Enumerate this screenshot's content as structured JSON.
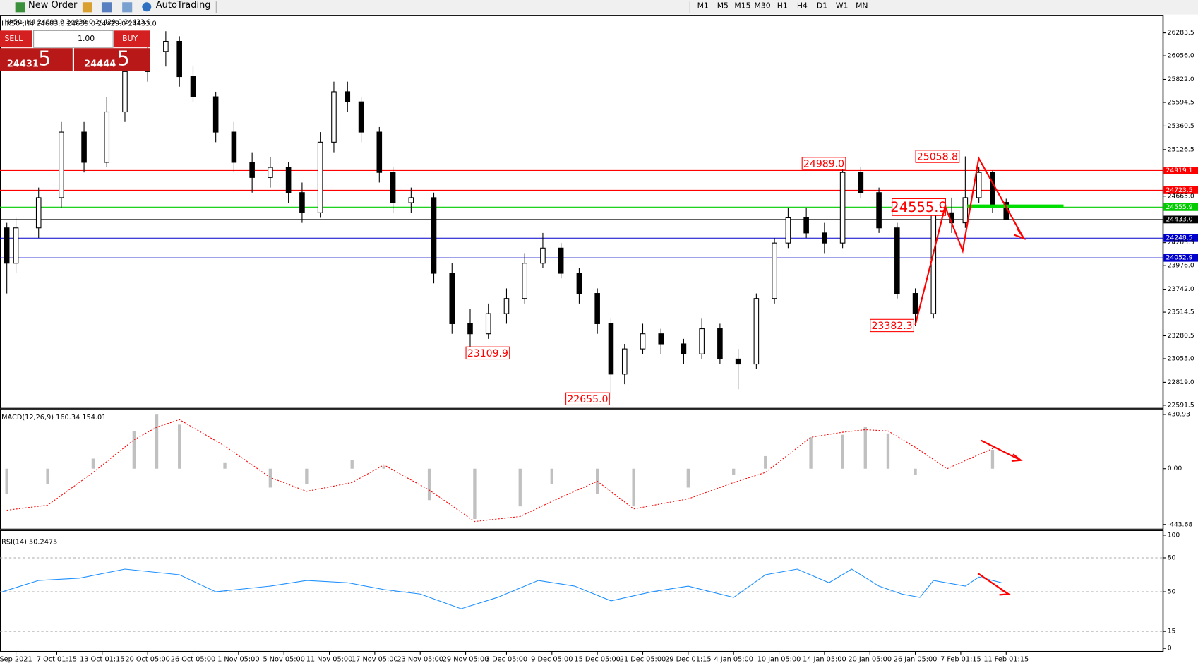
{
  "toolbar": {
    "new_order": "New Order",
    "auto_trading": "AutoTrading",
    "periods": [
      "M1",
      "M5",
      "M15",
      "M30",
      "H1",
      "H4",
      "D1",
      "W1",
      "MN"
    ]
  },
  "trade_panel": {
    "sell": "SELL",
    "lots": "1.00",
    "buy": "BUY",
    "bid_big": "24431",
    "bid_small": ".5",
    "ask_big": "24444",
    "ask_small": ".5"
  },
  "chart_data": [
    {
      "type": "candlestick",
      "title": "HK50-,H4  24603.0 24639.0 24429.0 24433.0",
      "up_color": "#ffffff",
      "down_color": "#000000",
      "xlim": [
        0,
        256
      ],
      "ylim": [
        22569,
        26443
      ],
      "yticks": [
        26283.5,
        {
          "value": 26056.0,
          "label": "26056.0"
        },
        {
          "value": 25822.0,
          "label": "25822.0"
        },
        25594.5,
        25360.5,
        25126.5,
        {
          "value": 24665.0,
          "label": "24665.0"
        },
        24203.5,
        {
          "value": 23976.0,
          "label": "23976.0"
        },
        {
          "value": 23742.0,
          "label": "23742.0"
        },
        23514.5,
        23280.5,
        {
          "value": 23053.0,
          "label": "23053.0"
        },
        {
          "value": 22819.0,
          "label": "22819.0"
        },
        22591.5
      ],
      "xticks": [
        {
          "value": 3,
          "label": "Sep 2021"
        },
        {
          "value": 12,
          "label": "7 Oct 01:15"
        },
        {
          "value": 22,
          "label": "13 Oct 01:15"
        },
        {
          "value": 32,
          "label": "20 Oct 05:00"
        },
        {
          "value": 42,
          "label": "26 Oct 05:00"
        },
        {
          "value": 52,
          "label": "1 Nov 05:00"
        },
        {
          "value": 62,
          "label": "5 Nov 05:00"
        },
        {
          "value": 72,
          "label": "11 Nov 05:00"
        },
        {
          "value": 82,
          "label": "17 Nov 05:00"
        },
        {
          "value": 92,
          "label": "23 Nov 05:00"
        },
        {
          "value": 102,
          "label": "29 Nov 05:00"
        },
        {
          "value": 111,
          "label": "3 Dec 05:00"
        },
        {
          "value": 121,
          "label": "9 Dec 05:00"
        },
        {
          "value": 131,
          "label": "15 Dec 05:00"
        },
        {
          "value": 141,
          "label": "21 Dec 05:00"
        },
        {
          "value": 151,
          "label": "29 Dec 01:15"
        },
        {
          "value": 161,
          "label": "4 Jan 05:00"
        },
        {
          "value": 171,
          "label": "10 Jan 05:00"
        },
        {
          "value": 181,
          "label": "14 Jan 05:00"
        },
        {
          "value": 191,
          "label": "20 Jan 05:00"
        },
        {
          "value": 201,
          "label": "26 Jan 05:00"
        },
        {
          "value": 211,
          "label": "7 Feb 01:15"
        },
        {
          "value": 221,
          "label": "11 Feb 01:15"
        }
      ],
      "levels": [
        {
          "value": 24919.1,
          "color": "#ff0000"
        },
        {
          "value": 24723.5,
          "color": "#ff0000"
        },
        {
          "value": 24555.9,
          "color": "#00cc00"
        },
        {
          "value": 24433.0,
          "label": "24433.0",
          "color": "#000000"
        },
        {
          "value": 24248.5,
          "color": "#0000cc"
        },
        {
          "value": 24052.9,
          "color": "#0000cc"
        }
      ],
      "annotations": [
        {
          "text": "24989.0",
          "value": 24989.0,
          "x": 186
        },
        {
          "text": "25058.8",
          "value": 25058.8,
          "x": 211
        },
        {
          "text": "24555.9",
          "value": 24555.9,
          "x": 208
        },
        {
          "text": "23382.3",
          "value": 23382.3,
          "x": 201
        },
        {
          "text": "23109.9",
          "value": 23109.9,
          "x": 112
        },
        {
          "text": "22655.0",
          "value": 22655.0,
          "x": 134
        }
      ],
      "candles": [
        {
          "x": 1,
          "open": 24350,
          "high": 24400,
          "low": 23700,
          "close": 24000
        },
        {
          "x": 3,
          "open": 24000,
          "high": 24450,
          "low": 23900,
          "close": 24350
        },
        {
          "x": 8,
          "open": 24350,
          "high": 24750,
          "low": 24250,
          "close": 24650
        },
        {
          "x": 13,
          "open": 24650,
          "high": 25400,
          "low": 24550,
          "close": 25300
        },
        {
          "x": 18,
          "open": 25300,
          "high": 25400,
          "low": 24900,
          "close": 25000
        },
        {
          "x": 23,
          "open": 25000,
          "high": 25650,
          "low": 24950,
          "close": 25500
        },
        {
          "x": 27,
          "open": 25500,
          "high": 25950,
          "low": 25400,
          "close": 25900
        },
        {
          "x": 32,
          "open": 25900,
          "high": 26200,
          "low": 25800,
          "close": 26100
        },
        {
          "x": 36,
          "open": 26100,
          "high": 26300,
          "low": 25950,
          "close": 26200
        },
        {
          "x": 39,
          "open": 26200,
          "high": 26250,
          "low": 25750,
          "close": 25850
        },
        {
          "x": 42,
          "open": 25850,
          "high": 25950,
          "low": 25600,
          "close": 25650
        },
        {
          "x": 47,
          "open": 25650,
          "high": 25700,
          "low": 25200,
          "close": 25300
        },
        {
          "x": 51,
          "open": 25300,
          "high": 25400,
          "low": 24900,
          "close": 25000
        },
        {
          "x": 55,
          "open": 25000,
          "high": 25100,
          "low": 24700,
          "close": 24850
        },
        {
          "x": 59,
          "open": 24850,
          "high": 25050,
          "low": 24750,
          "close": 24950
        },
        {
          "x": 63,
          "open": 24950,
          "high": 25000,
          "low": 24600,
          "close": 24700
        },
        {
          "x": 66,
          "open": 24700,
          "high": 24800,
          "low": 24400,
          "close": 24500
        },
        {
          "x": 70,
          "open": 24500,
          "high": 25300,
          "low": 24450,
          "close": 25200
        },
        {
          "x": 73,
          "open": 25200,
          "high": 25800,
          "low": 25100,
          "close": 25700
        },
        {
          "x": 76,
          "open": 25700,
          "high": 25800,
          "low": 25500,
          "close": 25600
        },
        {
          "x": 79,
          "open": 25600,
          "high": 25650,
          "low": 25200,
          "close": 25300
        },
        {
          "x": 83,
          "open": 25300,
          "high": 25350,
          "low": 24800,
          "close": 24900
        },
        {
          "x": 86,
          "open": 24900,
          "high": 24950,
          "low": 24500,
          "close": 24600
        },
        {
          "x": 90,
          "open": 24600,
          "high": 24750,
          "low": 24500,
          "close": 24650
        },
        {
          "x": 95,
          "open": 24650,
          "high": 24700,
          "low": 23800,
          "close": 23900
        },
        {
          "x": 99,
          "open": 23900,
          "high": 24000,
          "low": 23300,
          "close": 23400
        },
        {
          "x": 103,
          "open": 23400,
          "high": 23550,
          "low": 23110,
          "close": 23300
        },
        {
          "x": 107,
          "open": 23300,
          "high": 23600,
          "low": 23250,
          "close": 23500
        },
        {
          "x": 111,
          "open": 23500,
          "high": 23750,
          "low": 23400,
          "close": 23650
        },
        {
          "x": 115,
          "open": 23650,
          "high": 24100,
          "low": 23600,
          "close": 24000
        },
        {
          "x": 119,
          "open": 24000,
          "high": 24300,
          "low": 23950,
          "close": 24150
        },
        {
          "x": 123,
          "open": 24150,
          "high": 24200,
          "low": 23850,
          "close": 23900
        },
        {
          "x": 127,
          "open": 23900,
          "high": 23950,
          "low": 23600,
          "close": 23700
        },
        {
          "x": 131,
          "open": 23700,
          "high": 23750,
          "low": 23300,
          "close": 23400
        },
        {
          "x": 134,
          "open": 23400,
          "high": 23450,
          "low": 22655,
          "close": 22900
        },
        {
          "x": 137,
          "open": 22900,
          "high": 23200,
          "low": 22800,
          "close": 23150
        },
        {
          "x": 141,
          "open": 23150,
          "high": 23400,
          "low": 23100,
          "close": 23300
        },
        {
          "x": 145,
          "open": 23300,
          "high": 23350,
          "low": 23100,
          "close": 23200
        },
        {
          "x": 150,
          "open": 23200,
          "high": 23250,
          "low": 23000,
          "close": 23100
        },
        {
          "x": 154,
          "open": 23100,
          "high": 23450,
          "low": 23050,
          "close": 23350
        },
        {
          "x": 158,
          "open": 23350,
          "high": 23400,
          "low": 23000,
          "close": 23050
        },
        {
          "x": 162,
          "open": 23050,
          "high": 23150,
          "low": 22750,
          "close": 23000
        },
        {
          "x": 166,
          "open": 23000,
          "high": 23700,
          "low": 22950,
          "close": 23650
        },
        {
          "x": 170,
          "open": 23650,
          "high": 24250,
          "low": 23600,
          "close": 24200
        },
        {
          "x": 173,
          "open": 24200,
          "high": 24550,
          "low": 24150,
          "close": 24450
        },
        {
          "x": 177,
          "open": 24450,
          "high": 24550,
          "low": 24250,
          "close": 24300
        },
        {
          "x": 181,
          "open": 24300,
          "high": 24400,
          "low": 24100,
          "close": 24200
        },
        {
          "x": 185,
          "open": 24200,
          "high": 24989,
          "low": 24150,
          "close": 24900
        },
        {
          "x": 189,
          "open": 24900,
          "high": 24950,
          "low": 24650,
          "close": 24700
        },
        {
          "x": 193,
          "open": 24700,
          "high": 24750,
          "low": 24300,
          "close": 24350
        },
        {
          "x": 197,
          "open": 24350,
          "high": 24400,
          "low": 23650,
          "close": 23700
        },
        {
          "x": 201,
          "open": 23700,
          "high": 23750,
          "low": 23382.3,
          "close": 23500
        },
        {
          "x": 205,
          "open": 23500,
          "high": 24600,
          "low": 23450,
          "close": 24500
        },
        {
          "x": 209,
          "open": 24500,
          "high": 24650,
          "low": 24300,
          "close": 24400
        },
        {
          "x": 212,
          "open": 24400,
          "high": 25058.8,
          "low": 24350,
          "close": 24650
        },
        {
          "x": 215,
          "open": 24650,
          "high": 24950,
          "low": 24600,
          "close": 24900
        },
        {
          "x": 218,
          "open": 24900,
          "high": 24920,
          "low": 24500,
          "close": 24550
        },
        {
          "x": 221,
          "open": 24603,
          "high": 24639,
          "low": 24429,
          "close": 24433
        }
      ]
    },
    {
      "type": "macd",
      "title": "MACD(12,26,9) 160.34 154.01",
      "xlim": [
        0,
        256
      ],
      "ylim": [
        -468,
        462
      ],
      "yticks": [
        430.93,
        {
          "value": 0,
          "label": "0.00"
        },
        -443.68
      ],
      "hist_color": "#c0c0c0",
      "signal_color": "#ff0000",
      "x": [
        1,
        10,
        20,
        29,
        34,
        39,
        49,
        59,
        67,
        77,
        84,
        94,
        104,
        114,
        121,
        131,
        139,
        151,
        161,
        168,
        178,
        185,
        190,
        195,
        201,
        208,
        218
      ],
      "histogram": [
        -200,
        -120,
        80,
        300,
        430,
        350,
        50,
        -150,
        -120,
        70,
        20,
        -250,
        -400,
        -300,
        -120,
        -200,
        -300,
        -150,
        -50,
        100,
        250,
        270,
        330,
        280,
        -50,
        0,
        150
      ],
      "signal": [
        -330,
        -290,
        -30,
        230,
        330,
        390,
        180,
        -70,
        -180,
        -110,
        30,
        -170,
        -420,
        -380,
        -260,
        -100,
        -320,
        -240,
        -110,
        -30,
        250,
        290,
        310,
        300,
        170,
        0,
        160
      ]
    },
    {
      "type": "line",
      "title": "RSI(14) 50.2475",
      "xlim": [
        0,
        256
      ],
      "ylim": [
        0,
        100
      ],
      "yticks": [
        0,
        15,
        50,
        80,
        100
      ],
      "color": "#1e90ff",
      "x": [
        0,
        8,
        17,
        27,
        39,
        47,
        59,
        67,
        76,
        84,
        92,
        101,
        109,
        118,
        126,
        134,
        143,
        151,
        161,
        168,
        175,
        182,
        187,
        193,
        198,
        202,
        205,
        212,
        215,
        220
      ],
      "values": [
        50,
        60,
        62,
        70,
        65,
        50,
        55,
        60,
        58,
        52,
        48,
        35,
        45,
        60,
        55,
        42,
        50,
        55,
        45,
        65,
        70,
        58,
        70,
        55,
        48,
        45,
        60,
        55,
        63,
        58
      ]
    }
  ]
}
